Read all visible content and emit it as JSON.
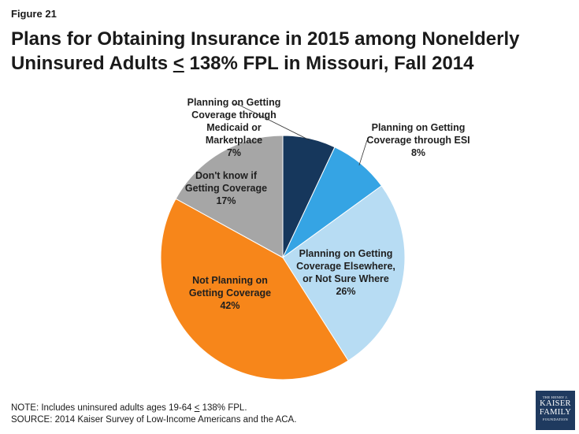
{
  "figure_label": "Figure 21",
  "title": {
    "line1": "Plans for Obtaining Insurance in 2015 among Nonelderly",
    "line2_pre": "Uninsured Adults ",
    "line2_symbol": "<",
    "line2_post": " 138% FPL in Missouri, Fall 2014"
  },
  "chart_data": {
    "type": "pie",
    "title": "Plans for Obtaining Insurance in 2015 among Nonelderly Uninsured Adults < 138% FPL in Missouri, Fall 2014",
    "start": "12 o'clock",
    "direction": "clockwise",
    "slices": [
      {
        "label_lines": [
          "Planning on Getting",
          "Coverage through",
          "Medicaid or",
          "Marketplace"
        ],
        "pct": "7%",
        "value": 7,
        "color": "#16375c"
      },
      {
        "label_lines": [
          "Planning on Getting",
          "Coverage through ESI"
        ],
        "pct": "8%",
        "value": 8,
        "color": "#35a4e4"
      },
      {
        "label_lines": [
          "Planning on Getting",
          "Coverage Elsewhere,",
          "or Not Sure Where"
        ],
        "pct": "26%",
        "value": 26,
        "color": "#b7dcf3"
      },
      {
        "label_lines": [
          "Not Planning on",
          "Getting Coverage"
        ],
        "pct": "42%",
        "value": 42,
        "color": "#f7861a"
      },
      {
        "label_lines": [
          "Don't know if",
          "Getting Coverage"
        ],
        "pct": "17%",
        "value": 17,
        "color": "#a6a6a6"
      }
    ]
  },
  "notes": {
    "note_pre": "NOTE: Includes uninsured adults ages 19-64 ",
    "note_symbol": "<",
    "note_post": " 138% FPL.",
    "source": "SOURCE: 2014 Kaiser Survey of Low-Income Americans and the ACA."
  },
  "logo": {
    "line1": "THE HENRY J.",
    "line2": "KAISER",
    "line3": "FAMILY",
    "line4": "FOUNDATION"
  }
}
